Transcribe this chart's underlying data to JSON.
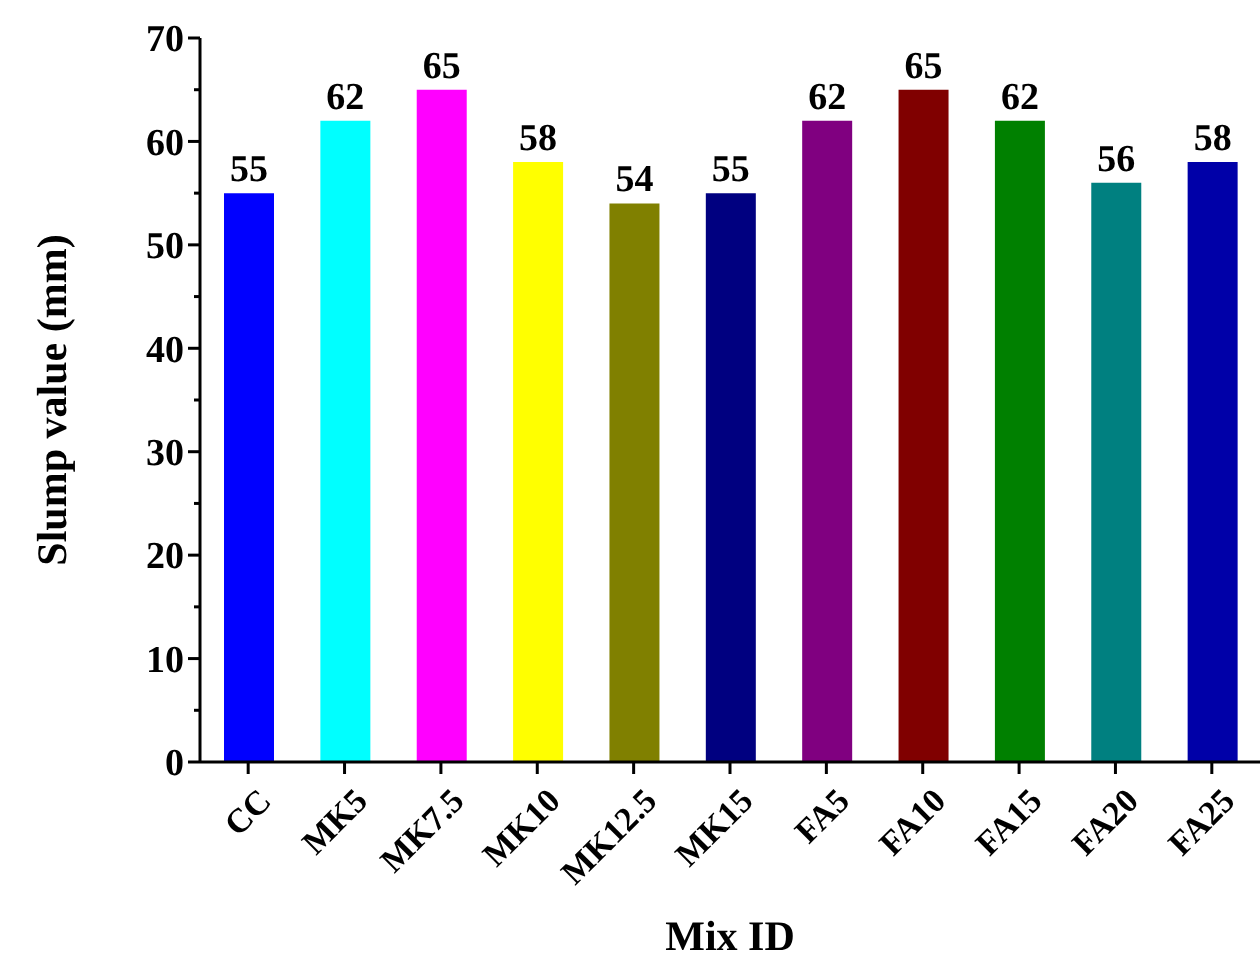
{
  "chart_data": {
    "type": "bar",
    "xlabel": "Mix ID",
    "ylabel": "Slump value (mm)",
    "categories": [
      "CC",
      "MK5",
      "MK7.5",
      "MK10",
      "MK12.5",
      "MK15",
      "FA5",
      "FA10",
      "FA15",
      "FA20",
      "FA25"
    ],
    "values": [
      55,
      62,
      65,
      58,
      54,
      55,
      62,
      65,
      62,
      56,
      58
    ],
    "colors": [
      "#0000ff",
      "#00ffff",
      "#ff00ff",
      "#ffff00",
      "#808000",
      "#000080",
      "#800080",
      "#800000",
      "#008000",
      "#008080",
      "#0000a8"
    ],
    "ylim": [
      0,
      70
    ],
    "yticks": [
      0,
      {
        "value": 5,
        "label": null
      },
      10,
      {
        "value": 15,
        "label": null
      },
      20,
      {
        "value": 25,
        "label": null
      },
      30,
      {
        "value": 35,
        "label": null
      },
      40,
      {
        "value": 45,
        "label": null
      },
      50,
      {
        "value": 55,
        "label": null
      },
      60,
      {
        "value": 65,
        "label": null
      },
      70
    ],
    "data_labels": true,
    "grid": false,
    "legend": false
  }
}
